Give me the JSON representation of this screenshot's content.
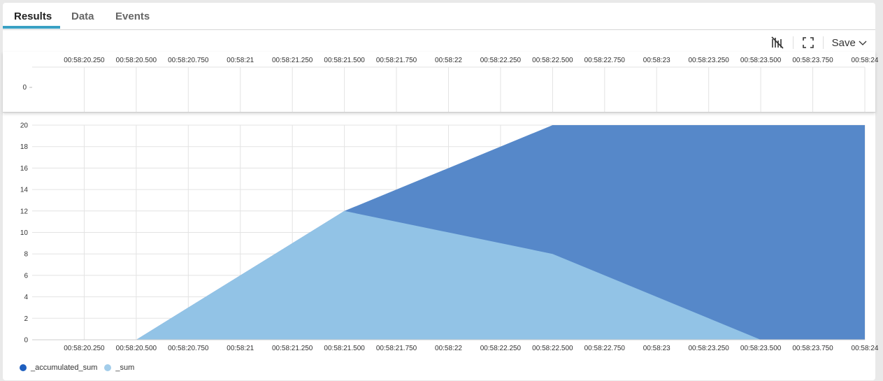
{
  "tabs": [
    {
      "label": "Results"
    },
    {
      "label": "Data"
    },
    {
      "label": "Events"
    }
  ],
  "toolbar": {
    "save_label": "Save",
    "icons": [
      "chart-toggle-icon",
      "fullscreen-icon",
      "chevron-down-icon"
    ]
  },
  "chart_data": {
    "type": "area",
    "x_ticks": [
      "00:58:20.250",
      "00:58:20.500",
      "00:58:20.750",
      "00:58:21",
      "00:58:21.250",
      "00:58:21.500",
      "00:58:21.750",
      "00:58:22",
      "00:58:22.250",
      "00:58:22.500",
      "00:58:22.750",
      "00:58:23",
      "00:58:23.250",
      "00:58:23.500",
      "00:58:23.750",
      "00:58:24"
    ],
    "x_range_seconds": [
      20.0,
      24.0
    ],
    "y_ticks": [
      0,
      2,
      4,
      6,
      8,
      10,
      12,
      14,
      16,
      18,
      20
    ],
    "ylim": [
      0,
      20
    ],
    "mini_y_ticks": [
      0
    ],
    "x": [
      20.0,
      20.5,
      21.5,
      22.5,
      23.5,
      24.0
    ],
    "series": [
      {
        "name": "_accumulated_sum",
        "color": "#5688c9",
        "legend_color": "#1f5fbf",
        "values": [
          0,
          0,
          12,
          20,
          20,
          20
        ]
      },
      {
        "name": "_sum",
        "color": "#92c3e6",
        "legend_color": "#a3cdea",
        "values": [
          0,
          0,
          12,
          8,
          0,
          0
        ]
      }
    ],
    "grid": true,
    "legend": "bottom-left"
  }
}
